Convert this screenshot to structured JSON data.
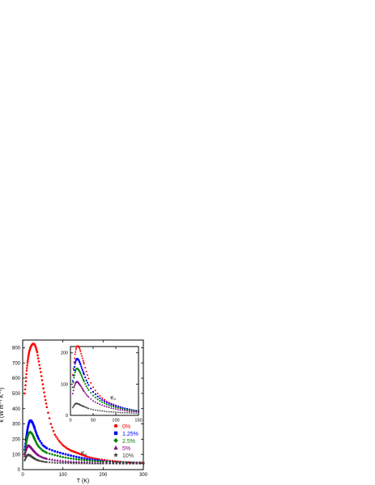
{
  "chart_data": [
    {
      "type": "scatter",
      "role": "main",
      "xlabel": "T (K)",
      "ylabel": "κ (W m⁻¹ K⁻¹)",
      "xlim": [
        0,
        300
      ],
      "ylim": [
        0,
        850
      ],
      "xticks": [
        0,
        100,
        200,
        300
      ],
      "yticks": [
        0,
        100,
        200,
        300,
        400,
        500,
        600,
        700,
        800
      ],
      "annotation": "K₀",
      "annotation_at": [
        145,
        95
      ],
      "legend_position": "right",
      "series": [
        {
          "name": "0%",
          "color": "#ff0000",
          "marker": "circle",
          "x": [
            5,
            8,
            10,
            12,
            14,
            16,
            18,
            20,
            22,
            25,
            28,
            30,
            33,
            36,
            40,
            45,
            50,
            55,
            60,
            70,
            80,
            90,
            100,
            110,
            120,
            130,
            140,
            150,
            160,
            175,
            190,
            210,
            230,
            250,
            270,
            290,
            300
          ],
          "y": [
            500,
            580,
            650,
            700,
            740,
            770,
            790,
            805,
            815,
            825,
            825,
            820,
            800,
            770,
            710,
            640,
            560,
            480,
            410,
            300,
            230,
            190,
            160,
            140,
            125,
            115,
            105,
            95,
            85,
            75,
            68,
            60,
            55,
            50,
            47,
            45,
            44
          ]
        },
        {
          "name": "1.25%",
          "color": "#0000ff",
          "marker": "square",
          "x": [
            5,
            8,
            10,
            12,
            14,
            16,
            18,
            20,
            22,
            25,
            28,
            30,
            35,
            40,
            50,
            60,
            80,
            100,
            120,
            140,
            160,
            180,
            200,
            225,
            250,
            275,
            300
          ],
          "y": [
            130,
            190,
            230,
            265,
            290,
            310,
            320,
            322,
            318,
            305,
            285,
            270,
            230,
            200,
            160,
            140,
            120,
            105,
            92,
            80,
            70,
            62,
            55,
            50,
            47,
            45,
            44
          ]
        },
        {
          "name": "2.5%",
          "color": "#008000",
          "marker": "diamond",
          "x": [
            5,
            8,
            10,
            12,
            14,
            16,
            18,
            20,
            22,
            25,
            28,
            30,
            35,
            40,
            50,
            60,
            80,
            100,
            120,
            140,
            160,
            180,
            200,
            225,
            250,
            275,
            300
          ],
          "y": [
            110,
            160,
            190,
            215,
            232,
            242,
            246,
            245,
            240,
            228,
            210,
            198,
            170,
            150,
            125,
            110,
            95,
            82,
            73,
            66,
            60,
            56,
            52,
            49,
            47,
            45,
            44
          ]
        },
        {
          "name": "5%",
          "color": "#800080",
          "marker": "triangle",
          "x": [
            5,
            8,
            10,
            12,
            14,
            16,
            18,
            20,
            22,
            25,
            28,
            30,
            35,
            40,
            50,
            60,
            80,
            100,
            120,
            140,
            160,
            180,
            200,
            225,
            250,
            275,
            300
          ],
          "y": [
            90,
            125,
            145,
            155,
            158,
            157,
            153,
            148,
            142,
            133,
            123,
            117,
            103,
            93,
            80,
            72,
            63,
            57,
            53,
            50,
            48,
            46,
            45,
            44,
            43,
            43,
            42
          ]
        },
        {
          "name": "10%",
          "color": "#404040",
          "marker": "star",
          "x": [
            5,
            8,
            10,
            12,
            14,
            16,
            18,
            20,
            22,
            25,
            28,
            30,
            35,
            40,
            50,
            60,
            80,
            100,
            120,
            140,
            160,
            180,
            200,
            225,
            250,
            275,
            300
          ],
          "y": [
            60,
            80,
            90,
            95,
            97,
            96,
            93,
            90,
            86,
            80,
            75,
            71,
            64,
            59,
            53,
            49,
            45,
            43,
            42,
            41,
            41,
            40,
            40,
            40,
            40,
            40,
            40
          ]
        }
      ]
    },
    {
      "type": "scatter",
      "role": "inset",
      "xlim": [
        0,
        150
      ],
      "ylim": [
        0,
        220
      ],
      "xticks": [
        0,
        50,
        100,
        150
      ],
      "yticks": [
        0,
        100,
        200
      ],
      "annotation": "K₀",
      "annotation_at": [
        88,
        50
      ],
      "series": [
        {
          "color": "#ff0000",
          "marker": "circle",
          "x": [
            5,
            8,
            10,
            12,
            14,
            16,
            18,
            20,
            22,
            25,
            28,
            30,
            35,
            40,
            50,
            60,
            70,
            80,
            90,
            100,
            110,
            120,
            130,
            140,
            150
          ],
          "y": [
            130,
            170,
            195,
            210,
            220,
            222,
            220,
            215,
            205,
            190,
            175,
            165,
            140,
            118,
            90,
            70,
            55,
            45,
            38,
            32,
            27,
            22,
            18,
            15,
            12
          ]
        },
        {
          "color": "#0000ff",
          "marker": "square",
          "x": [
            5,
            8,
            10,
            12,
            14,
            16,
            18,
            20,
            22,
            25,
            28,
            30,
            35,
            40,
            50,
            60,
            70,
            80,
            90,
            100,
            110,
            120,
            130,
            140,
            150
          ],
          "y": [
            110,
            145,
            165,
            176,
            181,
            180,
            177,
            171,
            163,
            151,
            139,
            131,
            112,
            97,
            75,
            60,
            49,
            41,
            35,
            30,
            26,
            22,
            19,
            16,
            14
          ]
        },
        {
          "color": "#008000",
          "marker": "diamond",
          "x": [
            5,
            8,
            10,
            12,
            14,
            16,
            18,
            20,
            22,
            25,
            28,
            30,
            35,
            40,
            50,
            60,
            70,
            80,
            90,
            100,
            110,
            120,
            130,
            140,
            150
          ],
          "y": [
            90,
            120,
            137,
            147,
            150,
            149,
            146,
            141,
            135,
            125,
            115,
            108,
            93,
            81,
            63,
            51,
            42,
            35,
            30,
            26,
            22,
            19,
            17,
            15,
            13
          ]
        },
        {
          "color": "#800080",
          "marker": "triangle",
          "x": [
            5,
            8,
            10,
            12,
            14,
            16,
            18,
            20,
            22,
            25,
            28,
            30,
            35,
            40,
            50,
            60,
            70,
            80,
            90,
            100,
            110,
            120,
            130,
            140,
            150
          ],
          "y": [
            70,
            90,
            100,
            106,
            108,
            107,
            104,
            100,
            96,
            89,
            82,
            77,
            67,
            59,
            47,
            39,
            33,
            28,
            24,
            21,
            18,
            16,
            14,
            13,
            12
          ]
        },
        {
          "color": "#404040",
          "marker": "star",
          "x": [
            5,
            8,
            10,
            12,
            14,
            16,
            18,
            20,
            22,
            25,
            28,
            30,
            35,
            40,
            50,
            60,
            70,
            80,
            90,
            100,
            110,
            120,
            130,
            140,
            150
          ],
          "y": [
            25,
            32,
            36,
            38,
            38,
            37,
            36,
            35,
            33,
            31,
            29,
            28,
            25,
            22,
            18,
            16,
            14,
            12,
            11,
            10,
            9,
            8,
            8,
            7,
            7
          ]
        }
      ]
    }
  ]
}
